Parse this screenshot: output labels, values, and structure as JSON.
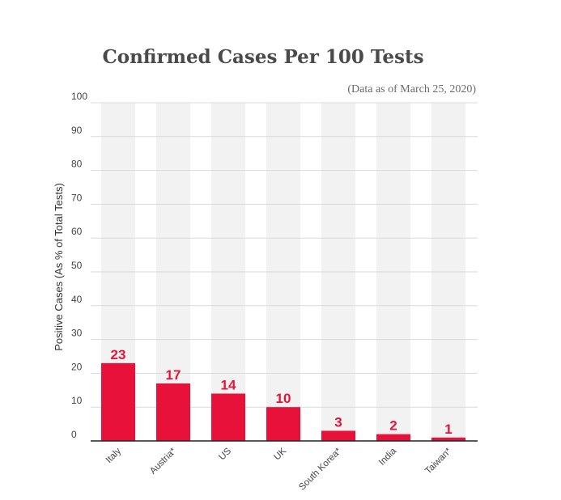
{
  "chart_data": {
    "type": "bar",
    "title": "Confirmed Cases Per 100 Tests",
    "subtitle": "(Data as of March 25, 2020)",
    "ylabel": "Positive Cases (As % of Total Tests)",
    "xlabel": "",
    "ylim": [
      0,
      100
    ],
    "yticks": [
      0,
      10,
      20,
      30,
      40,
      50,
      60,
      70,
      80,
      90,
      100
    ],
    "grid": true,
    "categories": [
      "Italy",
      "Austria*",
      "US",
      "UK",
      "South Korea*",
      "India",
      "Taiwan*"
    ],
    "values": [
      23,
      17,
      14,
      10,
      3,
      2,
      1
    ],
    "colors": {
      "bar": "#e8113a",
      "background_band": "#f2f2f2",
      "data_label": "#e8113a"
    }
  }
}
